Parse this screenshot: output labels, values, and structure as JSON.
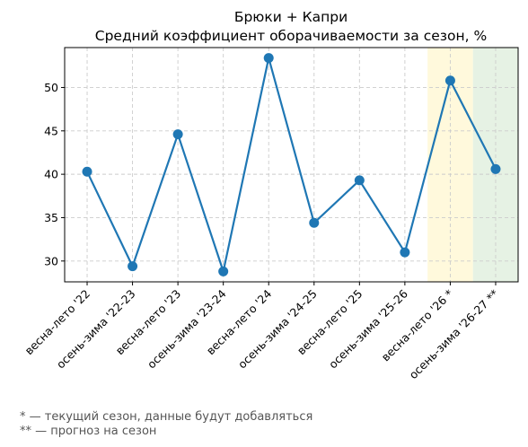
{
  "chart_data": {
    "type": "line",
    "title": "Брюки + Капри",
    "subtitle": "Средний коэффициент оборачиваемости за сезон, %",
    "xlabel": "",
    "ylabel": "",
    "categories": [
      "весна-лето '22",
      "осень-зима '22-23",
      "весна-лето '23",
      "осень-зима '23-24",
      "весна-лето '24",
      "осень-зима '24-25",
      "весна-лето '25",
      "осень-зима '25-26",
      "весна-лето '26 *",
      "осень-зима '26-27 **"
    ],
    "series": [
      {
        "values": [
          40.3,
          29.4,
          44.6,
          28.8,
          53.4,
          34.4,
          39.3,
          31.0,
          50.8,
          40.6
        ]
      }
    ],
    "ylim": [
      27.6,
      54.6
    ],
    "yticks": [
      30,
      35,
      40,
      45,
      50
    ],
    "grid": true,
    "line_color": "#1f77b4",
    "highlights": [
      {
        "category_index": 8,
        "color": "#fff9dc",
        "meaning": "current season"
      },
      {
        "category_index": 9,
        "color": "#e6f2e4",
        "meaning": "forecast"
      }
    ]
  },
  "notes": [
    "* — текущий сезон, данные будут добавляться",
    "** — прогноз на сезон"
  ]
}
